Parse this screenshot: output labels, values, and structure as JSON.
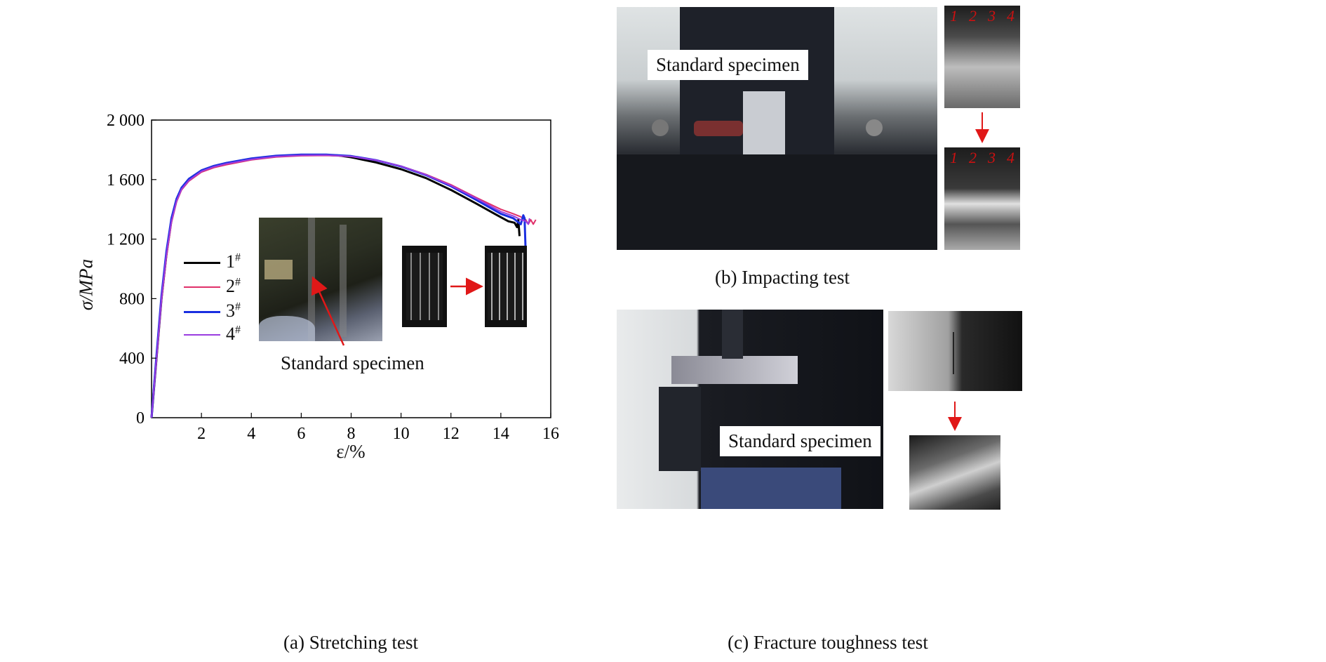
{
  "panel_a": {
    "caption": "(a) Stretching test",
    "inset_label": "Standard specimen"
  },
  "panel_b": {
    "caption": "(b) Impacting test",
    "label": "Standard specimen",
    "notch_numbers": [
      "1",
      "2",
      "3",
      "4"
    ]
  },
  "panel_c": {
    "caption": "(c) Fracture toughness test",
    "label": "Standard specimen"
  },
  "colors": {
    "series_1": "#000000",
    "series_2": "#e0306a",
    "series_3": "#1a2fe0",
    "series_4": "#9a3de0",
    "arrow": "#e01818"
  },
  "chart_data": {
    "type": "line",
    "xlabel": "ε/%",
    "ylabel": "σ/MPa",
    "xlim": [
      0,
      16
    ],
    "ylim": [
      0,
      2000
    ],
    "xticks": [
      {
        "value": 2,
        "label": "2"
      },
      {
        "value": 4,
        "label": "4"
      },
      {
        "value": 6,
        "label": "6"
      },
      {
        "value": 8,
        "label": "8"
      },
      {
        "value": 10,
        "label": "10"
      },
      {
        "value": 12,
        "label": "12"
      },
      {
        "value": 14,
        "label": "14"
      },
      {
        "value": 16,
        "label": "16"
      }
    ],
    "yticks": [
      {
        "value": 0,
        "label": "0"
      },
      {
        "value": 400,
        "label": "400"
      },
      {
        "value": 800,
        "label": "800"
      },
      {
        "value": 1200,
        "label": "1 200"
      },
      {
        "value": 1600,
        "label": "1 600"
      },
      {
        "value": 2000,
        "label": "2 000"
      }
    ],
    "legend_position": "center-left",
    "grid": false,
    "series": [
      {
        "name": "1#",
        "color": "#000000",
        "width": 3,
        "x": [
          0,
          0.2,
          0.4,
          0.6,
          0.8,
          1.0,
          1.2,
          1.5,
          2.0,
          2.5,
          3,
          4,
          5,
          6,
          7,
          7.5,
          8,
          9,
          10,
          11,
          12,
          13,
          13.8,
          14.3,
          14.55,
          14.65,
          14.7,
          14.75
        ],
        "y": [
          0,
          400,
          800,
          1100,
          1330,
          1460,
          1540,
          1600,
          1660,
          1690,
          1710,
          1740,
          1758,
          1765,
          1765,
          1762,
          1750,
          1715,
          1670,
          1610,
          1530,
          1440,
          1365,
          1320,
          1310,
          1280,
          1330,
          1220
        ]
      },
      {
        "name": "2#",
        "color": "#e0306a",
        "width": 2,
        "x": [
          0,
          0.2,
          0.4,
          0.6,
          0.8,
          1.0,
          1.2,
          1.5,
          2.0,
          2.5,
          3,
          4,
          5,
          6,
          7,
          8,
          9,
          10,
          11,
          12,
          13,
          14,
          14.5,
          14.8,
          15.0,
          15.1,
          15.2,
          15.3,
          15.4
        ],
        "y": [
          0,
          380,
          780,
          1080,
          1310,
          1450,
          1530,
          1590,
          1650,
          1680,
          1700,
          1732,
          1752,
          1760,
          1762,
          1755,
          1728,
          1690,
          1635,
          1565,
          1480,
          1400,
          1370,
          1350,
          1330,
          1300,
          1330,
          1300,
          1330
        ]
      },
      {
        "name": "3#",
        "color": "#1a2fe0",
        "width": 3,
        "x": [
          0,
          0.2,
          0.4,
          0.6,
          0.8,
          1.0,
          1.2,
          1.5,
          2.0,
          2.5,
          3,
          4,
          5,
          6,
          7,
          8,
          9,
          10,
          11,
          12,
          13,
          14,
          14.5,
          14.8,
          14.9,
          14.95,
          15.0
        ],
        "y": [
          0,
          420,
          820,
          1120,
          1340,
          1470,
          1545,
          1605,
          1662,
          1692,
          1712,
          1742,
          1760,
          1768,
          1768,
          1758,
          1730,
          1688,
          1630,
          1555,
          1465,
          1370,
          1340,
          1300,
          1360,
          1340,
          1090
        ]
      },
      {
        "name": "4#",
        "color": "#9a3de0",
        "width": 2,
        "x": [
          0,
          0.2,
          0.4,
          0.6,
          0.8,
          1.0,
          1.2,
          1.5,
          2.0,
          2.5,
          3,
          4,
          5,
          6,
          7,
          8,
          9,
          10,
          11,
          12,
          13,
          14,
          14.5,
          14.8,
          15.0,
          15.1,
          15.15
        ],
        "y": [
          0,
          400,
          800,
          1100,
          1320,
          1455,
          1535,
          1595,
          1655,
          1686,
          1706,
          1736,
          1755,
          1763,
          1764,
          1756,
          1730,
          1690,
          1632,
          1560,
          1475,
          1385,
          1355,
          1330,
          1320,
          1300,
          1340
        ]
      }
    ]
  }
}
